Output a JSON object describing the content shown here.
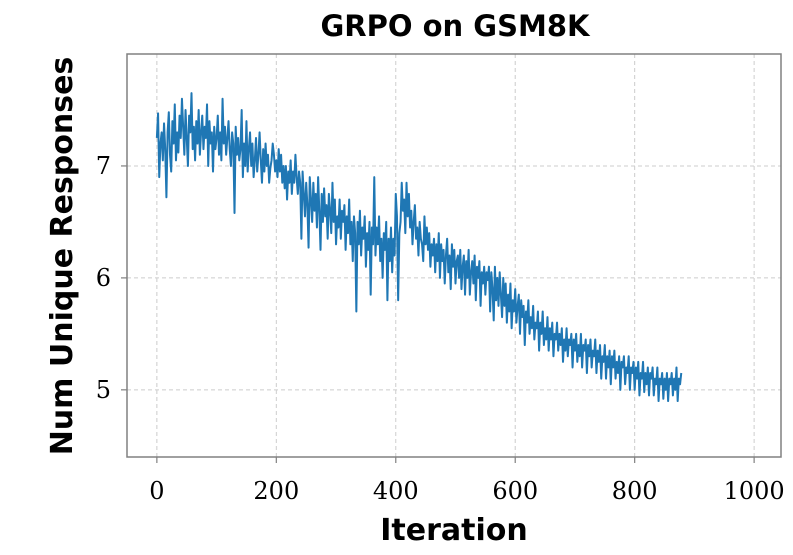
{
  "chart_data": {
    "type": "line",
    "title": "GRPO on GSM8K",
    "xlabel": "Iteration",
    "ylabel": "Num Unique Responses",
    "xlim": [
      -50,
      1045
    ],
    "ylim": [
      4.4,
      8.0
    ],
    "xticks": [
      0,
      200,
      400,
      600,
      800,
      1000
    ],
    "xtick_labels": [
      "0",
      "200",
      "400",
      "600",
      "800",
      "1000"
    ],
    "yticks": [
      5,
      6,
      7
    ],
    "ytick_labels": [
      "5",
      "6",
      "7"
    ],
    "grid": true,
    "legend": "none",
    "series_color": "#1f77b4",
    "series": [
      {
        "x_start": 0,
        "x_step": 2,
        "values": [
          7.25,
          7.47,
          6.9,
          7.2,
          7.3,
          7.05,
          7.38,
          7.15,
          6.72,
          7.3,
          7.48,
          7.1,
          6.95,
          7.4,
          7.2,
          7.55,
          7.05,
          7.3,
          7.12,
          7.45,
          7.25,
          7.6,
          7.35,
          7.1,
          7.5,
          7.25,
          7.0,
          7.45,
          7.3,
          7.65,
          7.15,
          7.35,
          7.05,
          7.4,
          7.2,
          7.5,
          7.1,
          7.3,
          7.45,
          7.15,
          7.35,
          7.25,
          7.55,
          7.0,
          7.4,
          7.2,
          7.3,
          6.95,
          7.35,
          7.15,
          7.25,
          7.45,
          7.1,
          7.3,
          7.05,
          7.6,
          7.2,
          7.35,
          7.1,
          7.25,
          7.4,
          7.15,
          7.0,
          7.3,
          7.2,
          6.58,
          7.35,
          7.1,
          7.25,
          7.05,
          7.15,
          7.5,
          6.9,
          7.2,
          7.0,
          7.4,
          6.95,
          7.15,
          7.3,
          7.0,
          7.2,
          6.9,
          7.05,
          7.25,
          6.95,
          7.1,
          7.3,
          7.05,
          6.85,
          7.15,
          6.95,
          7.2,
          7.0,
          7.1,
          6.85,
          6.98,
          7.05,
          7.2,
          7.1,
          6.95,
          7.05,
          6.9,
          7.15,
          6.95,
          7.1,
          6.85,
          7.0,
          6.8,
          7.0,
          6.7,
          6.95,
          6.85,
          7.05,
          6.75,
          6.95,
          6.85,
          7.1,
          6.9,
          6.75,
          6.95,
          6.85,
          6.35,
          6.95,
          6.75,
          6.55,
          6.85,
          6.65,
          6.27,
          6.9,
          6.7,
          6.5,
          6.85,
          6.6,
          6.75,
          6.45,
          6.9,
          6.6,
          6.25,
          6.75,
          6.5,
          6.8,
          6.55,
          6.65,
          6.35,
          6.75,
          6.6,
          6.4,
          6.85,
          6.5,
          6.7,
          6.3,
          6.55,
          6.45,
          6.7,
          6.35,
          6.6,
          6.5,
          6.65,
          6.25,
          6.55,
          6.4,
          6.7,
          6.3,
          6.5,
          6.15,
          6.55,
          6.4,
          5.7,
          6.5,
          6.3,
          6.6,
          6.2,
          6.45,
          6.35,
          6.55,
          6.1,
          6.4,
          6.25,
          6.5,
          5.85,
          6.45,
          6.3,
          6.9,
          6.2,
          6.45,
          6.3,
          6.55,
          6.15,
          6.35,
          6.0,
          6.4,
          6.25,
          6.5,
          5.8,
          6.35,
          6.15,
          6.45,
          6.05,
          6.35,
          6.2,
          6.75,
          6.55,
          5.8,
          6.4,
          6.5,
          6.85,
          6.6,
          6.7,
          6.4,
          6.85,
          6.55,
          6.75,
          6.45,
          6.6,
          6.3,
          6.5,
          6.65,
          6.35,
          6.45,
          6.2,
          6.5,
          6.35,
          6.3,
          6.15,
          6.55,
          6.3,
          6.45,
          6.25,
          6.4,
          6.1,
          6.3,
          6.2,
          6.35,
          6.05,
          6.3,
          6.15,
          6.4,
          6.0,
          6.3,
          6.15,
          6.25,
          5.95,
          6.2,
          6.35,
          6.05,
          6.2,
          5.9,
          6.3,
          6.1,
          6.25,
          5.95,
          6.15,
          6.2,
          6.0,
          6.25,
          5.9,
          6.1,
          6.2,
          5.85,
          6.15,
          6.0,
          6.25,
          5.85,
          6.05,
          6.15,
          5.95,
          6.2,
          5.8,
          6.1,
          6.0,
          6.15,
          5.75,
          6.05,
          5.95,
          6.1,
          5.85,
          6.05,
          5.98,
          6.1,
          5.7,
          6.05,
          5.9,
          5.62,
          6.1,
          5.8,
          6.0,
          5.75,
          6.05,
          5.85,
          5.65,
          6.0,
          5.75,
          5.95,
          5.6,
          5.85,
          5.7,
          5.95,
          5.55,
          5.8,
          5.7,
          5.9,
          5.6,
          5.75,
          5.85,
          5.5,
          5.8,
          5.65,
          5.75,
          5.4,
          5.7,
          5.6,
          5.8,
          5.5,
          5.65,
          5.55,
          5.75,
          5.45,
          5.6,
          5.55,
          5.7,
          5.35,
          5.6,
          5.5,
          5.7,
          5.4,
          5.55,
          5.45,
          5.65,
          5.35,
          5.55,
          5.45,
          5.6,
          5.3,
          5.5,
          5.45,
          5.6,
          5.35,
          5.5,
          5.4,
          5.55,
          5.25,
          5.45,
          5.35,
          5.55,
          5.3,
          5.45,
          5.4,
          5.5,
          5.2,
          5.45,
          5.35,
          5.5,
          5.25,
          5.4,
          5.3,
          5.5,
          5.2,
          5.4,
          5.35,
          5.45,
          5.15,
          5.4,
          5.3,
          5.45,
          5.2,
          5.35,
          5.3,
          5.45,
          5.15,
          5.35,
          5.25,
          5.4,
          5.1,
          5.3,
          5.25,
          5.4,
          5.1,
          5.3,
          5.2,
          5.35,
          5.05,
          5.3,
          5.2,
          5.35,
          5.1,
          5.25,
          5.15,
          5.3,
          5.0,
          5.25,
          5.2,
          5.3,
          5.05,
          5.2,
          5.15,
          5.3,
          5.0,
          5.2,
          5.15,
          5.25,
          5.0,
          5.2,
          5.1,
          5.25,
          4.95,
          5.15,
          5.1,
          5.25,
          4.98,
          5.15,
          5.05,
          5.2,
          4.95,
          5.15,
          5.1,
          5.2,
          4.95,
          5.1,
          5.05,
          5.2,
          4.9,
          5.1,
          5.05,
          5.15,
          4.92,
          5.1,
          5.0,
          5.15,
          4.9,
          5.1,
          5.05,
          5.15,
          4.95,
          5.1,
          5.0,
          5.2,
          4.9,
          5.1,
          5.05,
          5.15
        ]
      }
    ]
  }
}
